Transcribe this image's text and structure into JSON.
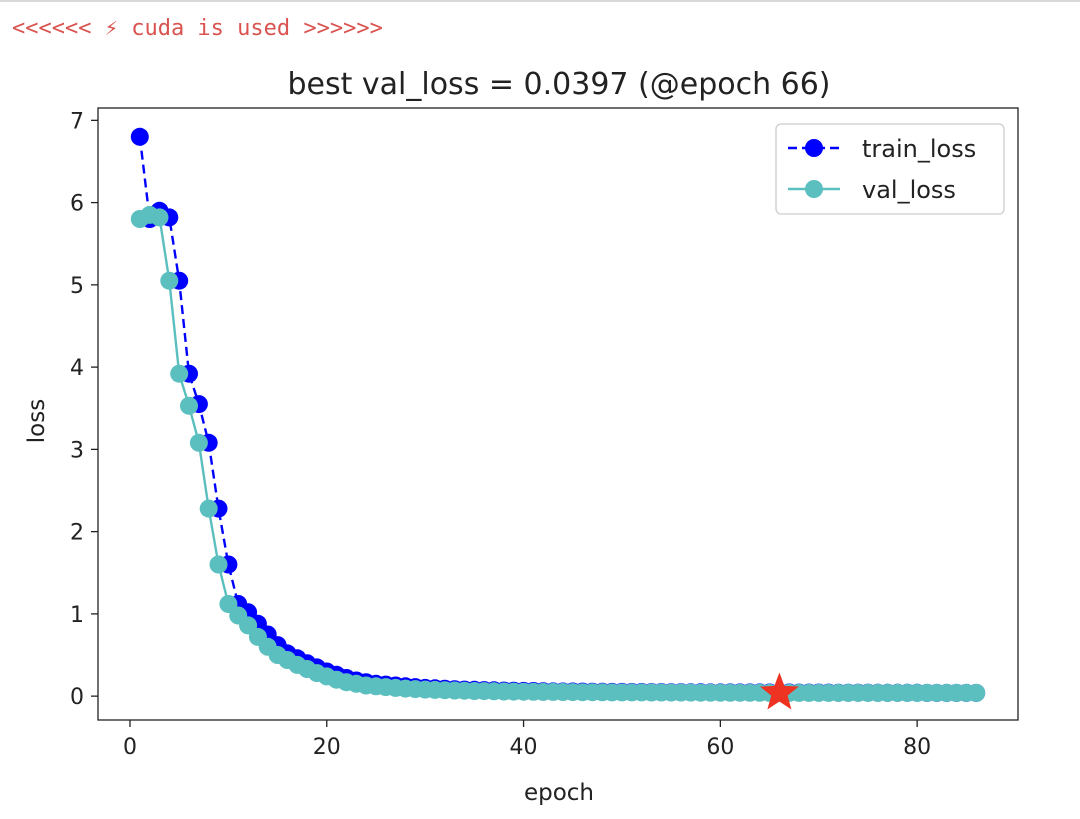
{
  "console": {
    "message": "<<<<<< ⚡ cuda is used >>>>>>"
  },
  "chart_data": {
    "type": "line",
    "title": "best val_loss = 0.0397 (@epoch 66)",
    "xlabel": "epoch",
    "ylabel": "loss",
    "xlim": [
      -3.25,
      90.25
    ],
    "ylim": [
      -0.29,
      7.15
    ],
    "xticks": [
      0,
      20,
      40,
      60,
      80
    ],
    "yticks": [
      0,
      1,
      2,
      3,
      4,
      5,
      6,
      7
    ],
    "legend_position": "upper right",
    "series": [
      {
        "name": "train_loss",
        "color": "#0000ff",
        "style": "dashed",
        "marker": "circle",
        "x": [
          1,
          2,
          3,
          4,
          5,
          6,
          7,
          8,
          9,
          10,
          11,
          12,
          13,
          14,
          15,
          16,
          17,
          18,
          19,
          20,
          21,
          22,
          23,
          24,
          25,
          26,
          27,
          28,
          29,
          30,
          31,
          32,
          33,
          34,
          35,
          36,
          37,
          38,
          39,
          40,
          41,
          42,
          43,
          44,
          45,
          46,
          47,
          48,
          49,
          50,
          51,
          52,
          53,
          54,
          55,
          56,
          57,
          58,
          59,
          60,
          61,
          62,
          63,
          64,
          65,
          66,
          67,
          68,
          69,
          70,
          71,
          72,
          73,
          74,
          75,
          76,
          77,
          78,
          79,
          80,
          81,
          82,
          83,
          84,
          85,
          86
        ],
        "y": [
          6.8,
          5.8,
          5.9,
          5.82,
          5.05,
          3.92,
          3.55,
          3.08,
          2.28,
          1.6,
          1.12,
          1.02,
          0.88,
          0.75,
          0.62,
          0.52,
          0.46,
          0.4,
          0.35,
          0.3,
          0.26,
          0.22,
          0.19,
          0.17,
          0.15,
          0.14,
          0.13,
          0.12,
          0.11,
          0.1,
          0.095,
          0.09,
          0.085,
          0.08,
          0.077,
          0.074,
          0.071,
          0.068,
          0.066,
          0.064,
          0.062,
          0.06,
          0.058,
          0.057,
          0.056,
          0.055,
          0.054,
          0.053,
          0.052,
          0.051,
          0.05,
          0.05,
          0.049,
          0.049,
          0.048,
          0.048,
          0.047,
          0.047,
          0.046,
          0.046,
          0.046,
          0.045,
          0.045,
          0.045,
          0.044,
          0.044,
          0.044,
          0.043,
          0.043,
          0.043,
          0.043,
          0.042,
          0.042,
          0.042,
          0.042,
          0.041,
          0.041,
          0.041,
          0.041,
          0.041,
          0.04,
          0.04,
          0.04,
          0.04,
          0.04,
          0.04
        ]
      },
      {
        "name": "val_loss",
        "color": "#5bbfbf",
        "style": "solid",
        "marker": "circle",
        "x": [
          1,
          2,
          3,
          4,
          5,
          6,
          7,
          8,
          9,
          10,
          11,
          12,
          13,
          14,
          15,
          16,
          17,
          18,
          19,
          20,
          21,
          22,
          23,
          24,
          25,
          26,
          27,
          28,
          29,
          30,
          31,
          32,
          33,
          34,
          35,
          36,
          37,
          38,
          39,
          40,
          41,
          42,
          43,
          44,
          45,
          46,
          47,
          48,
          49,
          50,
          51,
          52,
          53,
          54,
          55,
          56,
          57,
          58,
          59,
          60,
          61,
          62,
          63,
          64,
          65,
          66,
          67,
          68,
          69,
          70,
          71,
          72,
          73,
          74,
          75,
          76,
          77,
          78,
          79,
          80,
          81,
          82,
          83,
          84,
          85,
          86
        ],
        "y": [
          5.8,
          5.85,
          5.82,
          5.05,
          3.92,
          3.53,
          3.08,
          2.28,
          1.6,
          1.12,
          0.98,
          0.86,
          0.72,
          0.6,
          0.5,
          0.44,
          0.38,
          0.33,
          0.28,
          0.24,
          0.2,
          0.17,
          0.15,
          0.13,
          0.12,
          0.11,
          0.1,
          0.092,
          0.086,
          0.08,
          0.076,
          0.072,
          0.069,
          0.066,
          0.063,
          0.061,
          0.059,
          0.057,
          0.055,
          0.054,
          0.053,
          0.052,
          0.051,
          0.05,
          0.049,
          0.048,
          0.048,
          0.047,
          0.046,
          0.046,
          0.045,
          0.045,
          0.044,
          0.044,
          0.043,
          0.043,
          0.043,
          0.042,
          0.042,
          0.042,
          0.041,
          0.041,
          0.041,
          0.041,
          0.04,
          0.0397,
          0.04,
          0.04,
          0.04,
          0.04,
          0.04,
          0.04,
          0.04,
          0.04,
          0.04,
          0.04,
          0.04,
          0.04,
          0.04,
          0.04,
          0.04,
          0.04,
          0.04,
          0.04,
          0.04,
          0.04
        ]
      }
    ],
    "annotations": [
      {
        "type": "star",
        "x": 66,
        "y": 0.0397,
        "color": "#ee3322"
      }
    ]
  }
}
